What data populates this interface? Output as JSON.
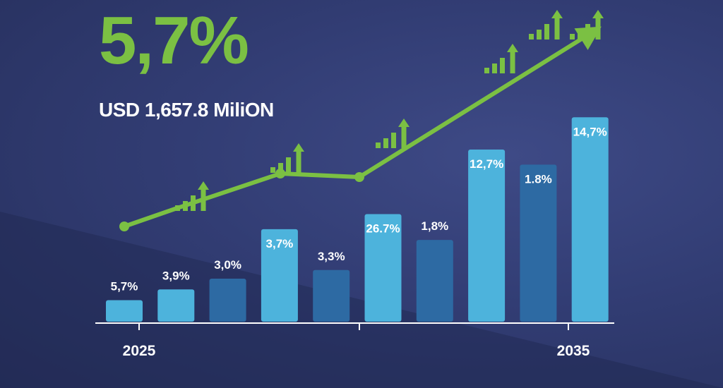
{
  "headline": "5,7%",
  "subheadline": "USD 1,657.8 MiliON",
  "colors": {
    "accent_green": "#7bc043",
    "bar_light": "#4db3dc",
    "bar_dark": "#2d6aa3",
    "text": "#ffffff"
  },
  "chart_data": {
    "type": "bar",
    "title": "",
    "xlabel": "",
    "ylabel": "",
    "x_tick_labels": [
      "2025",
      "2035"
    ],
    "bars": [
      {
        "label": "5,7%",
        "value": 1.0,
        "style": "light"
      },
      {
        "label": "3,9%",
        "value": 1.5,
        "style": "light"
      },
      {
        "label": "3,0%",
        "value": 2.0,
        "style": "dark"
      },
      {
        "label": "3,7%",
        "value": 4.3,
        "style": "light"
      },
      {
        "label": "3,3%",
        "value": 2.4,
        "style": "dark"
      },
      {
        "label": "26.7%",
        "value": 5.0,
        "style": "light"
      },
      {
        "label": "1,8%",
        "value": 3.8,
        "style": "dark"
      },
      {
        "label": "12,7%",
        "value": 8.0,
        "style": "light"
      },
      {
        "label": "1.8%",
        "value": 7.3,
        "style": "dark"
      },
      {
        "label": "14,7%",
        "value": 9.5,
        "style": "light"
      }
    ],
    "trend_line": {
      "color": "#7bc043",
      "values": [
        3.0,
        4.0,
        6.0,
        5.8,
        12.0
      ],
      "arrow": true
    },
    "growth_icons": 6,
    "grid": false,
    "legend": "none"
  }
}
